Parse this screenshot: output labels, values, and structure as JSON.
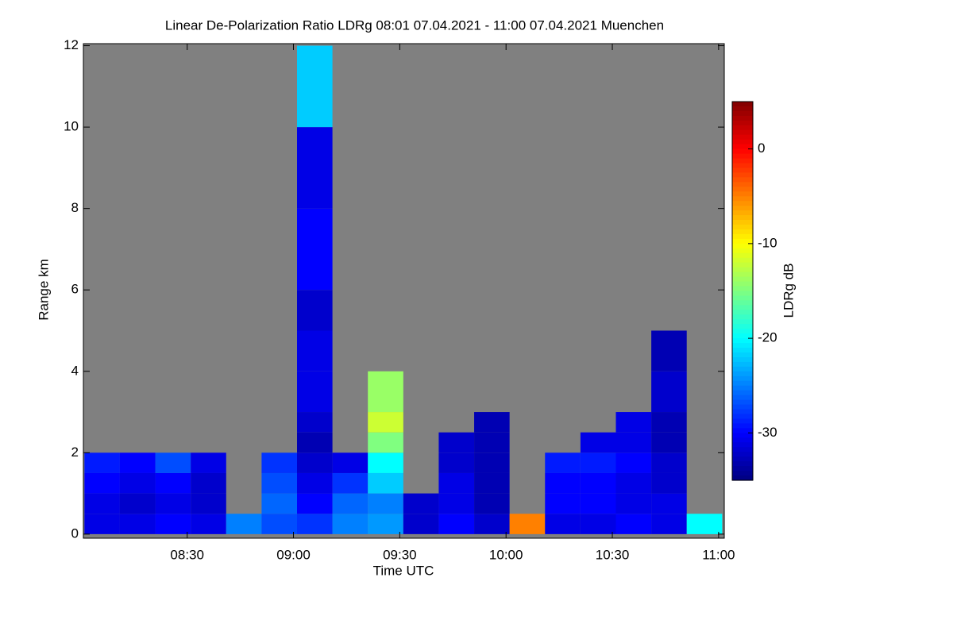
{
  "chart_data": {
    "type": "heatmap",
    "title": "Linear De-Polarization Ratio LDRg   08:01 07.04.2021 - 11:00 07.04.2021 Muenchen",
    "x_label": "Time UTC",
    "y_label": "Range km",
    "colorbar_label": "LDRg dB",
    "x_edges": [
      481,
      491,
      501,
      511,
      521,
      531,
      541,
      551,
      561,
      571,
      581,
      591,
      601,
      611,
      621,
      631,
      641,
      651,
      661
    ],
    "y_edges": [
      0,
      0.5,
      1,
      1.5,
      2,
      2.5,
      3,
      4,
      5,
      6,
      8,
      10,
      12
    ],
    "z": [
      [
        -31,
        -31,
        -30,
        -31,
        -25,
        -27,
        -28,
        -25,
        -24,
        -32,
        -30,
        -32,
        -5,
        -31,
        -31,
        -30,
        -31,
        -20
      ],
      [
        -31,
        -32,
        -31,
        -32,
        null,
        -26,
        -30,
        -26,
        -25,
        -32,
        -31,
        -33,
        null,
        -30,
        -30,
        -31,
        -31,
        null
      ],
      [
        -30,
        -31,
        -30,
        -32,
        null,
        -27,
        -31,
        -28,
        -22,
        null,
        -31,
        -33,
        null,
        -30,
        -30,
        -31,
        -32,
        null
      ],
      [
        -29,
        -30,
        -27,
        -31,
        null,
        -28,
        -32,
        -31,
        -20,
        null,
        -32,
        -33,
        null,
        -29,
        -29,
        -30,
        -32,
        null
      ],
      [
        null,
        null,
        null,
        null,
        null,
        null,
        -33,
        null,
        -15,
        null,
        -32,
        -33,
        null,
        null,
        -31,
        -31,
        -33,
        null
      ],
      [
        null,
        null,
        null,
        null,
        null,
        null,
        -32,
        null,
        -12,
        null,
        null,
        -33,
        null,
        null,
        null,
        -31,
        -33,
        null
      ],
      [
        null,
        null,
        null,
        null,
        null,
        null,
        -31,
        null,
        -14,
        null,
        null,
        null,
        null,
        null,
        null,
        null,
        -32,
        null
      ],
      [
        null,
        null,
        null,
        null,
        null,
        null,
        -31,
        null,
        null,
        null,
        null,
        null,
        null,
        null,
        null,
        null,
        -33,
        null
      ],
      [
        null,
        null,
        null,
        null,
        null,
        null,
        -32,
        null,
        null,
        null,
        null,
        null,
        null,
        null,
        null,
        null,
        null,
        null
      ],
      [
        null,
        null,
        null,
        null,
        null,
        null,
        -30,
        null,
        null,
        null,
        null,
        null,
        null,
        null,
        null,
        null,
        null,
        null
      ],
      [
        null,
        null,
        null,
        null,
        null,
        null,
        -31,
        null,
        null,
        null,
        null,
        null,
        null,
        null,
        null,
        null,
        null,
        null
      ],
      [
        null,
        null,
        null,
        null,
        null,
        null,
        -22,
        null,
        null,
        null,
        null,
        null,
        null,
        null,
        null,
        null,
        null,
        null
      ]
    ],
    "xlim": [
      480.7,
      661.6
    ],
    "xticks": [
      {
        "value": 510,
        "label": "08:30"
      },
      {
        "value": 540,
        "label": "09:00"
      },
      {
        "value": 570,
        "label": "09:30"
      },
      {
        "value": 600,
        "label": "10:00"
      },
      {
        "value": 630,
        "label": "10:30"
      },
      {
        "value": 660,
        "label": "11:00"
      }
    ],
    "ylim": [
      -0.1,
      12.05
    ],
    "yticks": [
      0,
      2,
      4,
      6,
      8,
      10,
      12
    ],
    "clim": [
      -35,
      5
    ],
    "cticks": [
      -30,
      -20,
      -10,
      0
    ],
    "colormap": "jet",
    "background_color": "#808080"
  }
}
